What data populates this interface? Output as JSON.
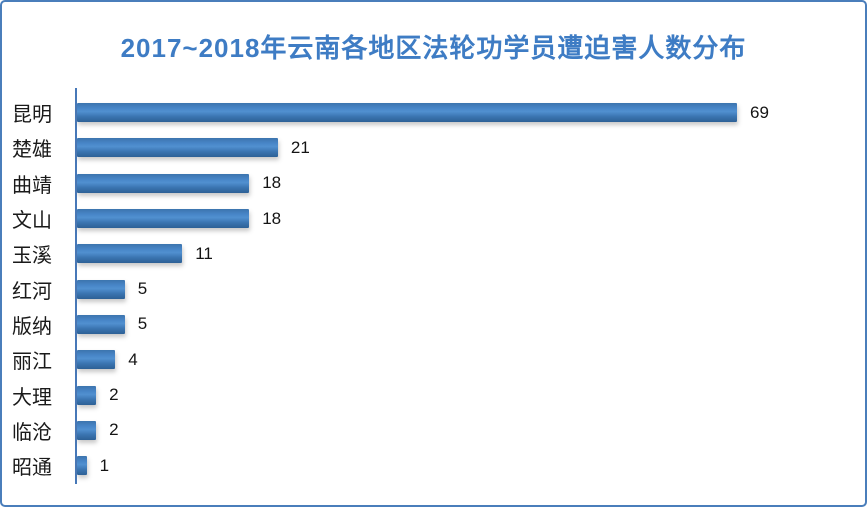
{
  "window": {
    "background_color": "#ffffff",
    "border_color": "#4a7ebb"
  },
  "chart_data": {
    "type": "bar",
    "orientation": "horizontal",
    "title": "2017~2018年云南各地区法轮功学员遭迫害人数分布",
    "categories": [
      "昆明",
      "楚雄",
      "曲靖",
      "文山",
      "玉溪",
      "红河",
      "版纳",
      "丽江",
      "大理",
      "临沧",
      "昭通"
    ],
    "values": [
      69,
      21,
      18,
      18,
      11,
      5,
      5,
      4,
      2,
      2,
      1
    ],
    "value_labels": [
      "69",
      "21",
      "18",
      "18",
      "11",
      "5",
      "5",
      "4",
      "2",
      "2",
      "1"
    ],
    "xlabel": "",
    "ylabel": "",
    "xlim": [
      0,
      69
    ],
    "grid": false,
    "legend": false,
    "data_labels_shown": true,
    "title_color": "#3e7cc4",
    "bar_color": "#3e7ab8",
    "axis_color": "#4778b8",
    "label_color": "#1a1a1a"
  }
}
